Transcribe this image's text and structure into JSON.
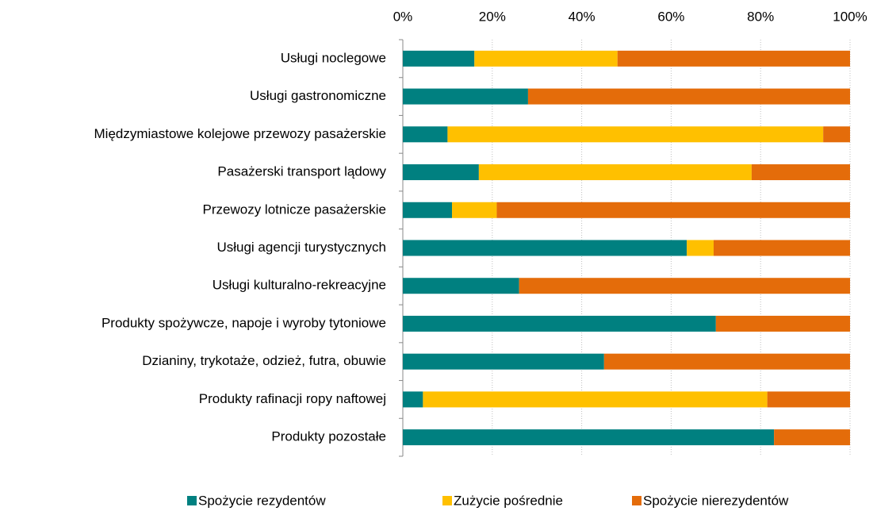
{
  "chart_data": {
    "type": "stacked_bar_horizontal",
    "categories": [
      "Usługi noclegowe",
      "Usługi gastronomiczne",
      "Międzymiastowe kolejowe przewozy pasażerskie",
      "Pasażerski transport lądowy",
      "Przewozy lotnicze pasażerskie",
      "Usługi agencji turystycznych",
      "Usługi kulturalno-rekreacyjne",
      "Produkty spożywcze, napoje i wyroby tytoniowe",
      "Dzianiny, trykotaże, odzież, futra, obuwie",
      "Produkty rafinacji ropy naftowej",
      "Produkty pozostałe"
    ],
    "series": [
      {
        "name": "Spożycie rezydentów",
        "color": "#008080",
        "values": [
          16,
          28,
          10,
          17,
          11,
          63.5,
          26,
          70,
          45,
          4.5,
          83
        ]
      },
      {
        "name": "Zużycie pośrednie",
        "color": "#ffc000",
        "values": [
          32,
          0,
          84,
          61,
          10,
          6,
          0,
          0,
          0,
          77,
          0
        ]
      },
      {
        "name": "Spożycie nierezydentów",
        "color": "#e46c0a",
        "values": [
          52,
          72,
          6,
          22,
          79,
          30.5,
          74,
          30,
          55,
          18.5,
          17
        ]
      }
    ],
    "xlim": [
      0,
      100
    ],
    "xticks": [
      {
        "value": 0,
        "label": "0%"
      },
      {
        "value": 20,
        "label": "20%"
      },
      {
        "value": 40,
        "label": "40%"
      },
      {
        "value": 60,
        "label": "60%"
      },
      {
        "value": 80,
        "label": "80%"
      },
      {
        "value": 100,
        "label": "100%"
      }
    ],
    "grid": true,
    "legend": "bottom"
  }
}
